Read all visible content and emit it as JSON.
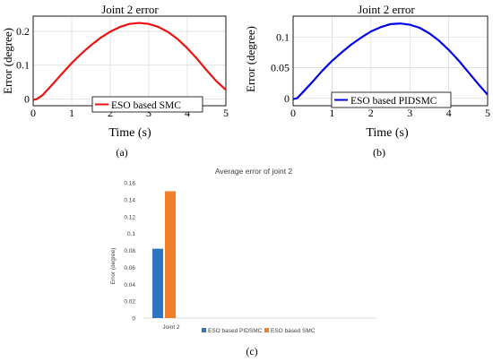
{
  "chart_data": [
    {
      "type": "line",
      "title": "Joint 2 error",
      "xlabel": "Time (s)",
      "ylabel": "Error (degree)",
      "xlim": [
        0,
        5
      ],
      "ylim": [
        -0.02,
        0.245
      ],
      "xticks": [
        "0",
        "1",
        "2",
        "3",
        "4",
        "5"
      ],
      "xtick_values": [
        0,
        1,
        2,
        3,
        4,
        5
      ],
      "yticks": [
        "0",
        "0.1",
        "0.2"
      ],
      "ytick_values": [
        0,
        0.1,
        0.2
      ],
      "grid": true,
      "legend_position": "bottom-right",
      "series": [
        {
          "name": "ESO based SMC",
          "color": "#ee1111",
          "x": [
            0,
            0.1,
            0.25,
            0.5,
            0.75,
            1.0,
            1.25,
            1.5,
            1.75,
            2.0,
            2.25,
            2.5,
            2.75,
            3.0,
            3.25,
            3.5,
            3.75,
            4.0,
            4.25,
            4.5,
            4.75,
            5.0
          ],
          "y": [
            -0.003,
            0.0,
            0.012,
            0.043,
            0.075,
            0.106,
            0.134,
            0.159,
            0.181,
            0.199,
            0.213,
            0.222,
            0.225,
            0.222,
            0.213,
            0.198,
            0.177,
            0.15,
            0.119,
            0.085,
            0.053,
            0.027
          ]
        }
      ],
      "caption": "(a)"
    },
    {
      "type": "line",
      "title": "Joint 2 error",
      "xlabel": "Time (s)",
      "ylabel": "Error (degree)",
      "xlim": [
        0,
        5
      ],
      "ylim": [
        -0.012,
        0.134
      ],
      "xticks": [
        "0",
        "1",
        "2",
        "3",
        "4",
        "5"
      ],
      "xtick_values": [
        0,
        1,
        2,
        3,
        4,
        5
      ],
      "yticks": [
        "0",
        "0.05",
        "0.1"
      ],
      "ytick_values": [
        0,
        0.05,
        0.1
      ],
      "grid": true,
      "legend_position": "bottom-right",
      "series": [
        {
          "name": "ESO based PIDSMC",
          "color": "#0000ee",
          "x": [
            0,
            0.1,
            0.25,
            0.5,
            0.75,
            1.0,
            1.25,
            1.5,
            1.75,
            2.0,
            2.25,
            2.5,
            2.75,
            3.0,
            3.25,
            3.5,
            3.75,
            4.0,
            4.25,
            4.5,
            4.75,
            5.0
          ],
          "y": [
            -0.001,
            0.0,
            0.01,
            0.027,
            0.045,
            0.061,
            0.075,
            0.088,
            0.099,
            0.109,
            0.116,
            0.121,
            0.122,
            0.12,
            0.115,
            0.106,
            0.094,
            0.079,
            0.062,
            0.043,
            0.024,
            0.006
          ]
        }
      ],
      "caption": "(b)"
    },
    {
      "type": "bar",
      "title": "Average error of joint 2",
      "xlabel": "",
      "ylabel": "Error (degree)",
      "categories": [
        "Joint 2"
      ],
      "ylim": [
        0,
        0.16
      ],
      "yticks": [
        "0",
        "0.02",
        "0.04",
        "0.06",
        "0.08",
        "0.1",
        "0.12",
        "0.14",
        "0.16"
      ],
      "ytick_values": [
        0,
        0.02,
        0.04,
        0.06,
        0.08,
        0.1,
        0.12,
        0.14,
        0.16
      ],
      "grid": false,
      "legend_position": "bottom",
      "series": [
        {
          "name": "ESO based PIDSMC",
          "color": "#2e75c0",
          "values": [
            0.082
          ]
        },
        {
          "name": "ESO based SMC",
          "color": "#f07f2a",
          "values": [
            0.15
          ]
        }
      ],
      "caption": "(c)"
    }
  ]
}
